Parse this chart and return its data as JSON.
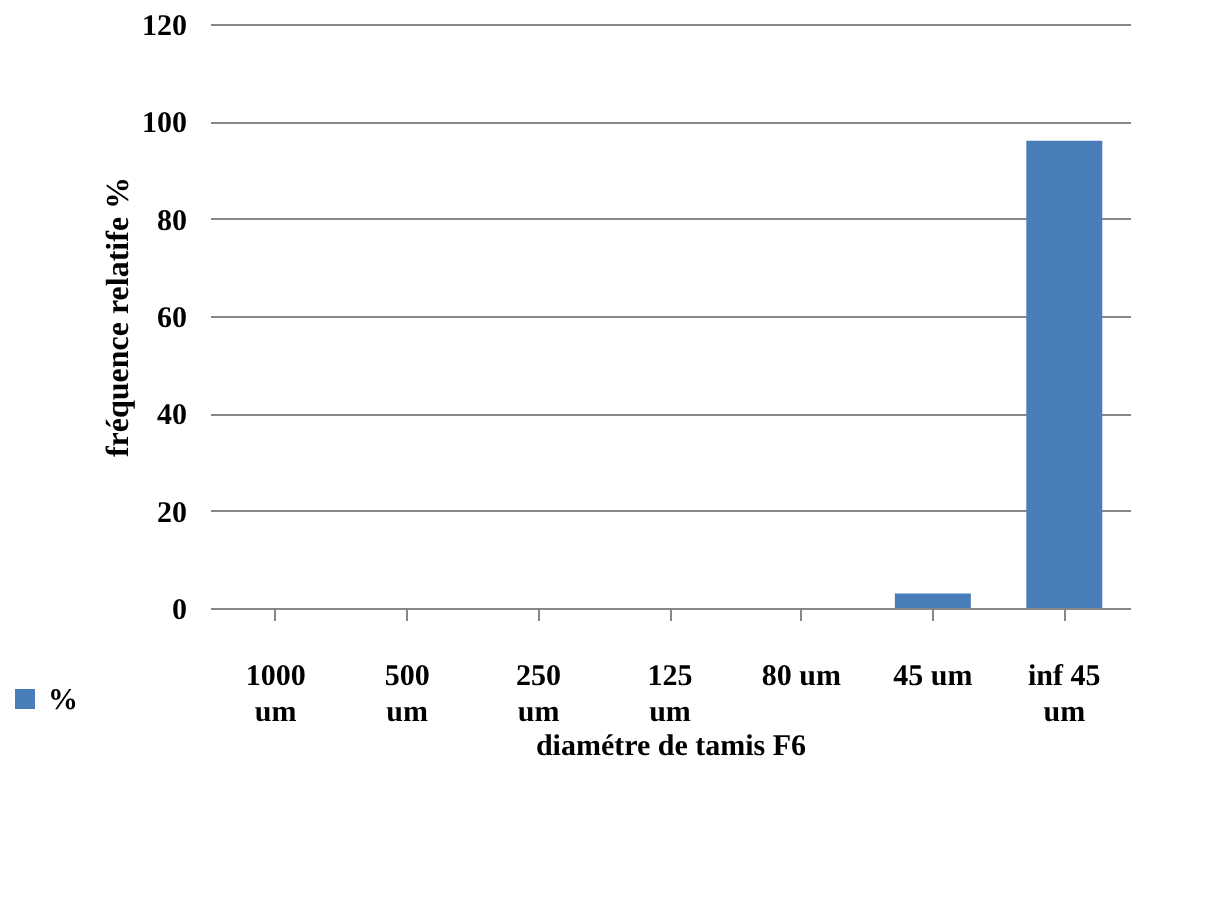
{
  "chart_data": {
    "type": "bar",
    "xlabel": "diamétre de tamis F6",
    "ylabel": "fréquence relatife %",
    "categories": [
      "1000\num",
      "500\num",
      "250\num",
      "125\num",
      "80 um",
      "45 um",
      "inf 45\num"
    ],
    "series": [
      {
        "name": "%",
        "color": "#4a7ebb",
        "values": [
          0,
          0,
          0,
          0,
          0,
          3,
          96
        ]
      }
    ],
    "ylim": [
      0,
      120
    ],
    "yticks": [
      0,
      20,
      40,
      60,
      80,
      100,
      120
    ],
    "grid": "y",
    "legend": "bottom left"
  }
}
